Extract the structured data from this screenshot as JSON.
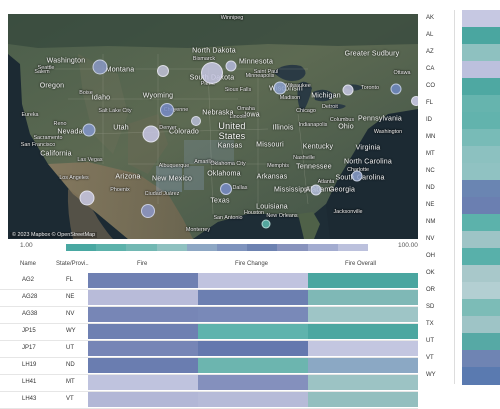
{
  "map": {
    "attribution": "© 2023 Mapbox © OpenStreetMap",
    "regions": [
      {
        "label": "Washington"
      },
      {
        "label": "Montana"
      },
      {
        "label": "North Dakota"
      },
      {
        "label": "Minnesota"
      },
      {
        "label": "Oregon"
      },
      {
        "label": "Idaho"
      },
      {
        "label": "South Dakota"
      },
      {
        "label": "Wyoming"
      },
      {
        "label": "Wisconsin"
      },
      {
        "label": "Michigan"
      },
      {
        "label": "Nevada"
      },
      {
        "label": "Utah"
      },
      {
        "label": "Nebraska"
      },
      {
        "label": "Iowa"
      },
      {
        "label": "United"
      },
      {
        "label": "States"
      },
      {
        "label": "Illinois"
      },
      {
        "label": "Ohio"
      },
      {
        "label": "Pennsylvania"
      },
      {
        "label": "California"
      },
      {
        "label": "Colorado"
      },
      {
        "label": "Kansas"
      },
      {
        "label": "Missouri"
      },
      {
        "label": "Kentucky"
      },
      {
        "label": "Virginia"
      },
      {
        "label": "Arizona"
      },
      {
        "label": "New Mexico"
      },
      {
        "label": "Oklahoma"
      },
      {
        "label": "Arkansas"
      },
      {
        "label": "Tennessee"
      },
      {
        "label": "Mississippi"
      },
      {
        "label": "Alabama"
      },
      {
        "label": "Georgia"
      },
      {
        "label": "Texas"
      },
      {
        "label": "Louisiana"
      },
      {
        "label": "North Carolina"
      },
      {
        "label": "South Carolina"
      },
      {
        "label": "Greater Sudbury"
      }
    ],
    "cities": [
      {
        "label": "Winnipeg"
      },
      {
        "label": "Seattle"
      },
      {
        "label": "Salem"
      },
      {
        "label": "Boise"
      },
      {
        "label": "Bismarck"
      },
      {
        "label": "Saint Paul"
      },
      {
        "label": "Minneapolis"
      },
      {
        "label": "Pierre"
      },
      {
        "label": "Sioux Falls"
      },
      {
        "label": "Madison"
      },
      {
        "label": "Milwaukee"
      },
      {
        "label": "Detroit"
      },
      {
        "label": "Toronto"
      },
      {
        "label": "Ottawa"
      },
      {
        "label": "Eureka"
      },
      {
        "label": "Reno"
      },
      {
        "label": "Salt Lake City"
      },
      {
        "label": "Cheyenne"
      },
      {
        "label": "Lincoln"
      },
      {
        "label": "Omaha"
      },
      {
        "label": "Chicago"
      },
      {
        "label": "Indianapolis"
      },
      {
        "label": "Columbus"
      },
      {
        "label": "Washington"
      },
      {
        "label": "San Francisco"
      },
      {
        "label": "Las Vegas"
      },
      {
        "label": "Los Angeles"
      },
      {
        "label": "Phoenix"
      },
      {
        "label": "Albuquerque"
      },
      {
        "label": "Amarillo"
      },
      {
        "label": "Oklahoma City"
      },
      {
        "label": "Dallas"
      },
      {
        "label": "Houston"
      },
      {
        "label": "San Antonio"
      },
      {
        "label": "Ciudad Juárez"
      },
      {
        "label": "Memphis"
      },
      {
        "label": "Atlanta"
      },
      {
        "label": "Charlotte"
      },
      {
        "label": "Jacksonville"
      },
      {
        "label": "New Orleans"
      },
      {
        "label": "Monterrey"
      },
      {
        "label": "Jacksonville"
      },
      {
        "label": "Nashville"
      },
      {
        "label": "Denver"
      },
      {
        "label": "Sacramento"
      }
    ]
  },
  "legend": {
    "min": "1.00",
    "max": "100.00",
    "colors": [
      "#49a8a2",
      "#5cb2ab",
      "#72b8b3",
      "#8fc1c0",
      "#8da7c4",
      "#7e93bd",
      "#6d82b1",
      "#8893bd",
      "#a3acd0",
      "#bcc1dd"
    ]
  },
  "table": {
    "headers": {
      "name": "Name",
      "state": "State/Provi..",
      "fire": "Fire",
      "change": "Fire Change",
      "overall": "Fire Overall"
    },
    "rows": [
      {
        "name": "AG2",
        "state": "FL",
        "fire": "#6f80b2",
        "change": "#c0c3df",
        "overall": "#4aa6a0"
      },
      {
        "name": "AG28",
        "state": "NE",
        "fire": "#b8bbd9",
        "change": "#6c7fb1",
        "overall": "#7fb8b6"
      },
      {
        "name": "AG38",
        "state": "NV",
        "fire": "#7786b6",
        "change": "#7989b8",
        "overall": "#9ec5c6"
      },
      {
        "name": "JP15",
        "state": "WY",
        "fire": "#6e80b2",
        "change": "#5fb3ad",
        "overall": "#4ca7a1"
      },
      {
        "name": "JP17",
        "state": "UT",
        "fire": "#7685b6",
        "change": "#6478ae",
        "overall": "#c3c6e0"
      },
      {
        "name": "LH19",
        "state": "ND",
        "fire": "#6a7db0",
        "change": "#6cb5af",
        "overall": "#8ba8c4"
      },
      {
        "name": "LH41",
        "state": "MT",
        "fire": "#bfc3de",
        "change": "#8490bd",
        "overall": "#9cc3c4"
      },
      {
        "name": "LH43",
        "state": "VT",
        "fire": "#b2b7d6",
        "change": "#b6bbd8",
        "overall": "#93bfbf"
      }
    ]
  },
  "states": [
    {
      "label": "AK",
      "color": "#c6c8e2"
    },
    {
      "label": "AL",
      "color": "#4aa6a0"
    },
    {
      "label": "AZ",
      "color": "#8ec1c0"
    },
    {
      "label": "CA",
      "color": "#bcc0dd"
    },
    {
      "label": "CO",
      "color": "#4ea8a2"
    },
    {
      "label": "FL",
      "color": "#66b4ae"
    },
    {
      "label": "ID",
      "color": "#62b3ad"
    },
    {
      "label": "MN",
      "color": "#78bbb7"
    },
    {
      "label": "MT",
      "color": "#8cc1c0"
    },
    {
      "label": "NC",
      "color": "#90c2c2"
    },
    {
      "label": "ND",
      "color": "#6a85b2"
    },
    {
      "label": "NE",
      "color": "#6b7fb1"
    },
    {
      "label": "NM",
      "color": "#5cb2ab"
    },
    {
      "label": "NV",
      "color": "#9ec4c6"
    },
    {
      "label": "OH",
      "color": "#58b0aa"
    },
    {
      "label": "OK",
      "color": "#a8c8ca"
    },
    {
      "label": "OR",
      "color": "#b3cfd2"
    },
    {
      "label": "SD",
      "color": "#7cbcb7"
    },
    {
      "label": "TX",
      "color": "#9ec4c6"
    },
    {
      "label": "UT",
      "color": "#56a9a5"
    },
    {
      "label": "VT",
      "color": "#6f84b3"
    },
    {
      "label": "WY",
      "color": "#5a7ab0"
    }
  ]
}
